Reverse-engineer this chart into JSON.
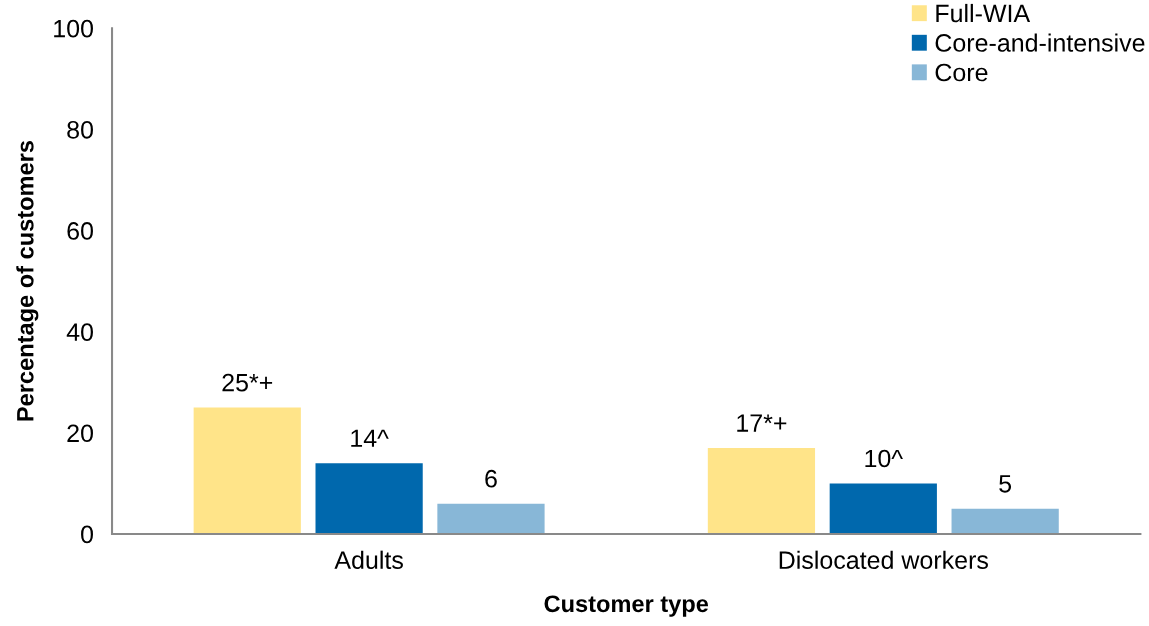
{
  "chart_data": {
    "type": "bar",
    "xlabel": "Customer type",
    "ylabel": "Percentage of customers",
    "categories": [
      "Adults",
      "Dislocated workers"
    ],
    "series": [
      {
        "name": "Full-WIA",
        "color": "#ffe489",
        "values": [
          25,
          17
        ],
        "value_labels": [
          "25*+",
          "17*+"
        ]
      },
      {
        "name": "Core-and-intensive",
        "color": "#0068ad",
        "values": [
          14,
          10
        ],
        "value_labels": [
          "14^",
          "10^"
        ]
      },
      {
        "name": "Core",
        "color": "#88b7d7",
        "values": [
          6,
          5
        ],
        "value_labels": [
          "6",
          "5"
        ]
      }
    ],
    "ylim": [
      0,
      100
    ],
    "yticks": [
      0,
      20,
      40,
      60,
      80,
      100
    ],
    "legend": "top right"
  }
}
